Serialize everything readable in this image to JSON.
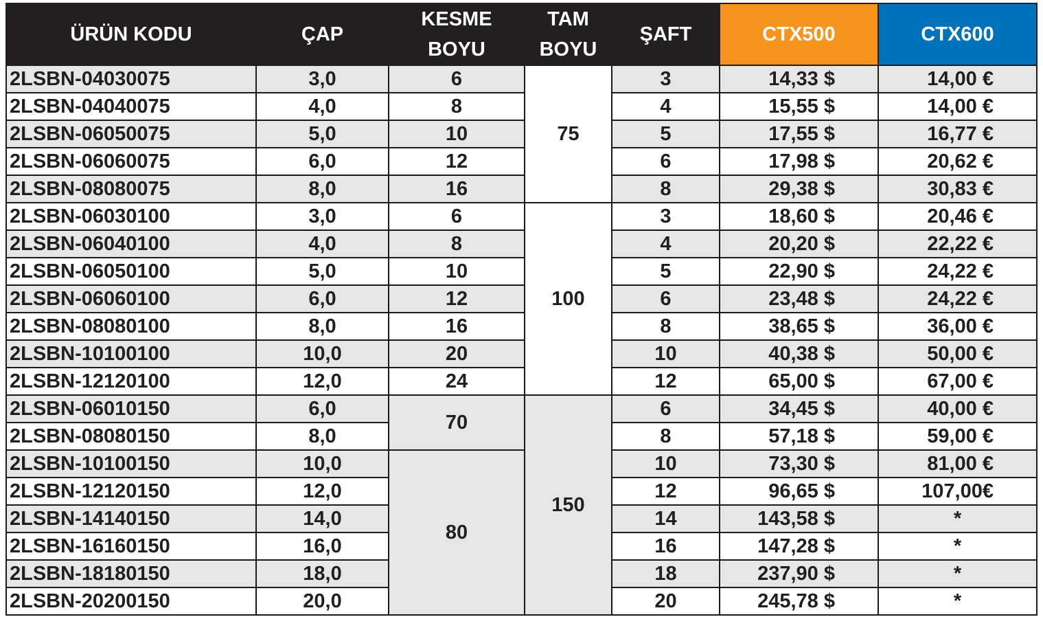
{
  "headers": {
    "code": "ÜRÜN KODU",
    "diameter": "ÇAP",
    "cut_length_1": "KESME",
    "cut_length_2": "BOYU",
    "total_length_1": "TAM",
    "total_length_2": "BOYU",
    "shaft": "ŞAFT",
    "ctx500": "CTX500",
    "ctx600": "CTX600"
  },
  "colors": {
    "header_bg": "#231f20",
    "ctx500_accent": "#f7941d",
    "ctx600_accent": "#0072bc",
    "row_grey": "#e6e6e6"
  },
  "groups": {
    "total_75": "75",
    "total_100": "100",
    "total_150": "150",
    "cut_70": "70",
    "cut_80": "80"
  },
  "rows": [
    {
      "code": "2LSBN-04030075",
      "diameter": "3,0",
      "cut": "6",
      "shaft": "3",
      "ctx500": "14,33 $",
      "ctx600": "14,00 €"
    },
    {
      "code": "2LSBN-04040075",
      "diameter": "4,0",
      "cut": "8",
      "shaft": "4",
      "ctx500": "15,55 $",
      "ctx600": "14,00 €"
    },
    {
      "code": "2LSBN-06050075",
      "diameter": "5,0",
      "cut": "10",
      "shaft": "5",
      "ctx500": "17,55 $",
      "ctx600": "16,77 €"
    },
    {
      "code": "2LSBN-06060075",
      "diameter": "6,0",
      "cut": "12",
      "shaft": "6",
      "ctx500": "17,98 $",
      "ctx600": "20,62 €"
    },
    {
      "code": "2LSBN-08080075",
      "diameter": "8,0",
      "cut": "16",
      "shaft": "8",
      "ctx500": "29,38 $",
      "ctx600": "30,83 €"
    },
    {
      "code": "2LSBN-06030100",
      "diameter": "3,0",
      "cut": "6",
      "shaft": "3",
      "ctx500": "18,60 $",
      "ctx600": "20,46 €"
    },
    {
      "code": "2LSBN-06040100",
      "diameter": "4,0",
      "cut": "8",
      "shaft": "4",
      "ctx500": "20,20 $",
      "ctx600": "22,22 €"
    },
    {
      "code": "2LSBN-06050100",
      "diameter": "5,0",
      "cut": "10",
      "shaft": "5",
      "ctx500": "22,90 $",
      "ctx600": "24,22 €"
    },
    {
      "code": "2LSBN-06060100",
      "diameter": "6,0",
      "cut": "12",
      "shaft": "6",
      "ctx500": "23,48 $",
      "ctx600": "24,22 €"
    },
    {
      "code": "2LSBN-08080100",
      "diameter": "8,0",
      "cut": "16",
      "shaft": "8",
      "ctx500": "38,65 $",
      "ctx600": "36,00 €"
    },
    {
      "code": "2LSBN-10100100",
      "diameter": "10,0",
      "cut": "20",
      "shaft": "10",
      "ctx500": "40,38 $",
      "ctx600": "50,00 €"
    },
    {
      "code": "2LSBN-12120100",
      "diameter": "12,0",
      "cut": "24",
      "shaft": "12",
      "ctx500": "65,00 $",
      "ctx600": "67,00 €"
    },
    {
      "code": "2LSBN-06010150",
      "diameter": "6,0",
      "shaft": "6",
      "ctx500": "34,45 $",
      "ctx600": "40,00 €"
    },
    {
      "code": "2LSBN-08080150",
      "diameter": "8,0",
      "shaft": "8",
      "ctx500": "57,18 $",
      "ctx600": "59,00 €"
    },
    {
      "code": "2LSBN-10100150",
      "diameter": "10,0",
      "shaft": "10",
      "ctx500": "73,30 $",
      "ctx600": "81,00 €"
    },
    {
      "code": "2LSBN-12120150",
      "diameter": "12,0",
      "shaft": "12",
      "ctx500": "96,65 $",
      "ctx600": "107,00€"
    },
    {
      "code": "2LSBN-14140150",
      "diameter": "14,0",
      "shaft": "14",
      "ctx500": "143,58 $",
      "ctx600": "*"
    },
    {
      "code": "2LSBN-16160150",
      "diameter": "16,0",
      "shaft": "16",
      "ctx500": "147,28 $",
      "ctx600": "*"
    },
    {
      "code": "2LSBN-18180150",
      "diameter": "18,0",
      "shaft": "18",
      "ctx500": "237,90 $",
      "ctx600": "*"
    },
    {
      "code": "2LSBN-20200150",
      "diameter": "20,0",
      "shaft": "20",
      "ctx500": "245,78 $",
      "ctx600": "*"
    }
  ]
}
